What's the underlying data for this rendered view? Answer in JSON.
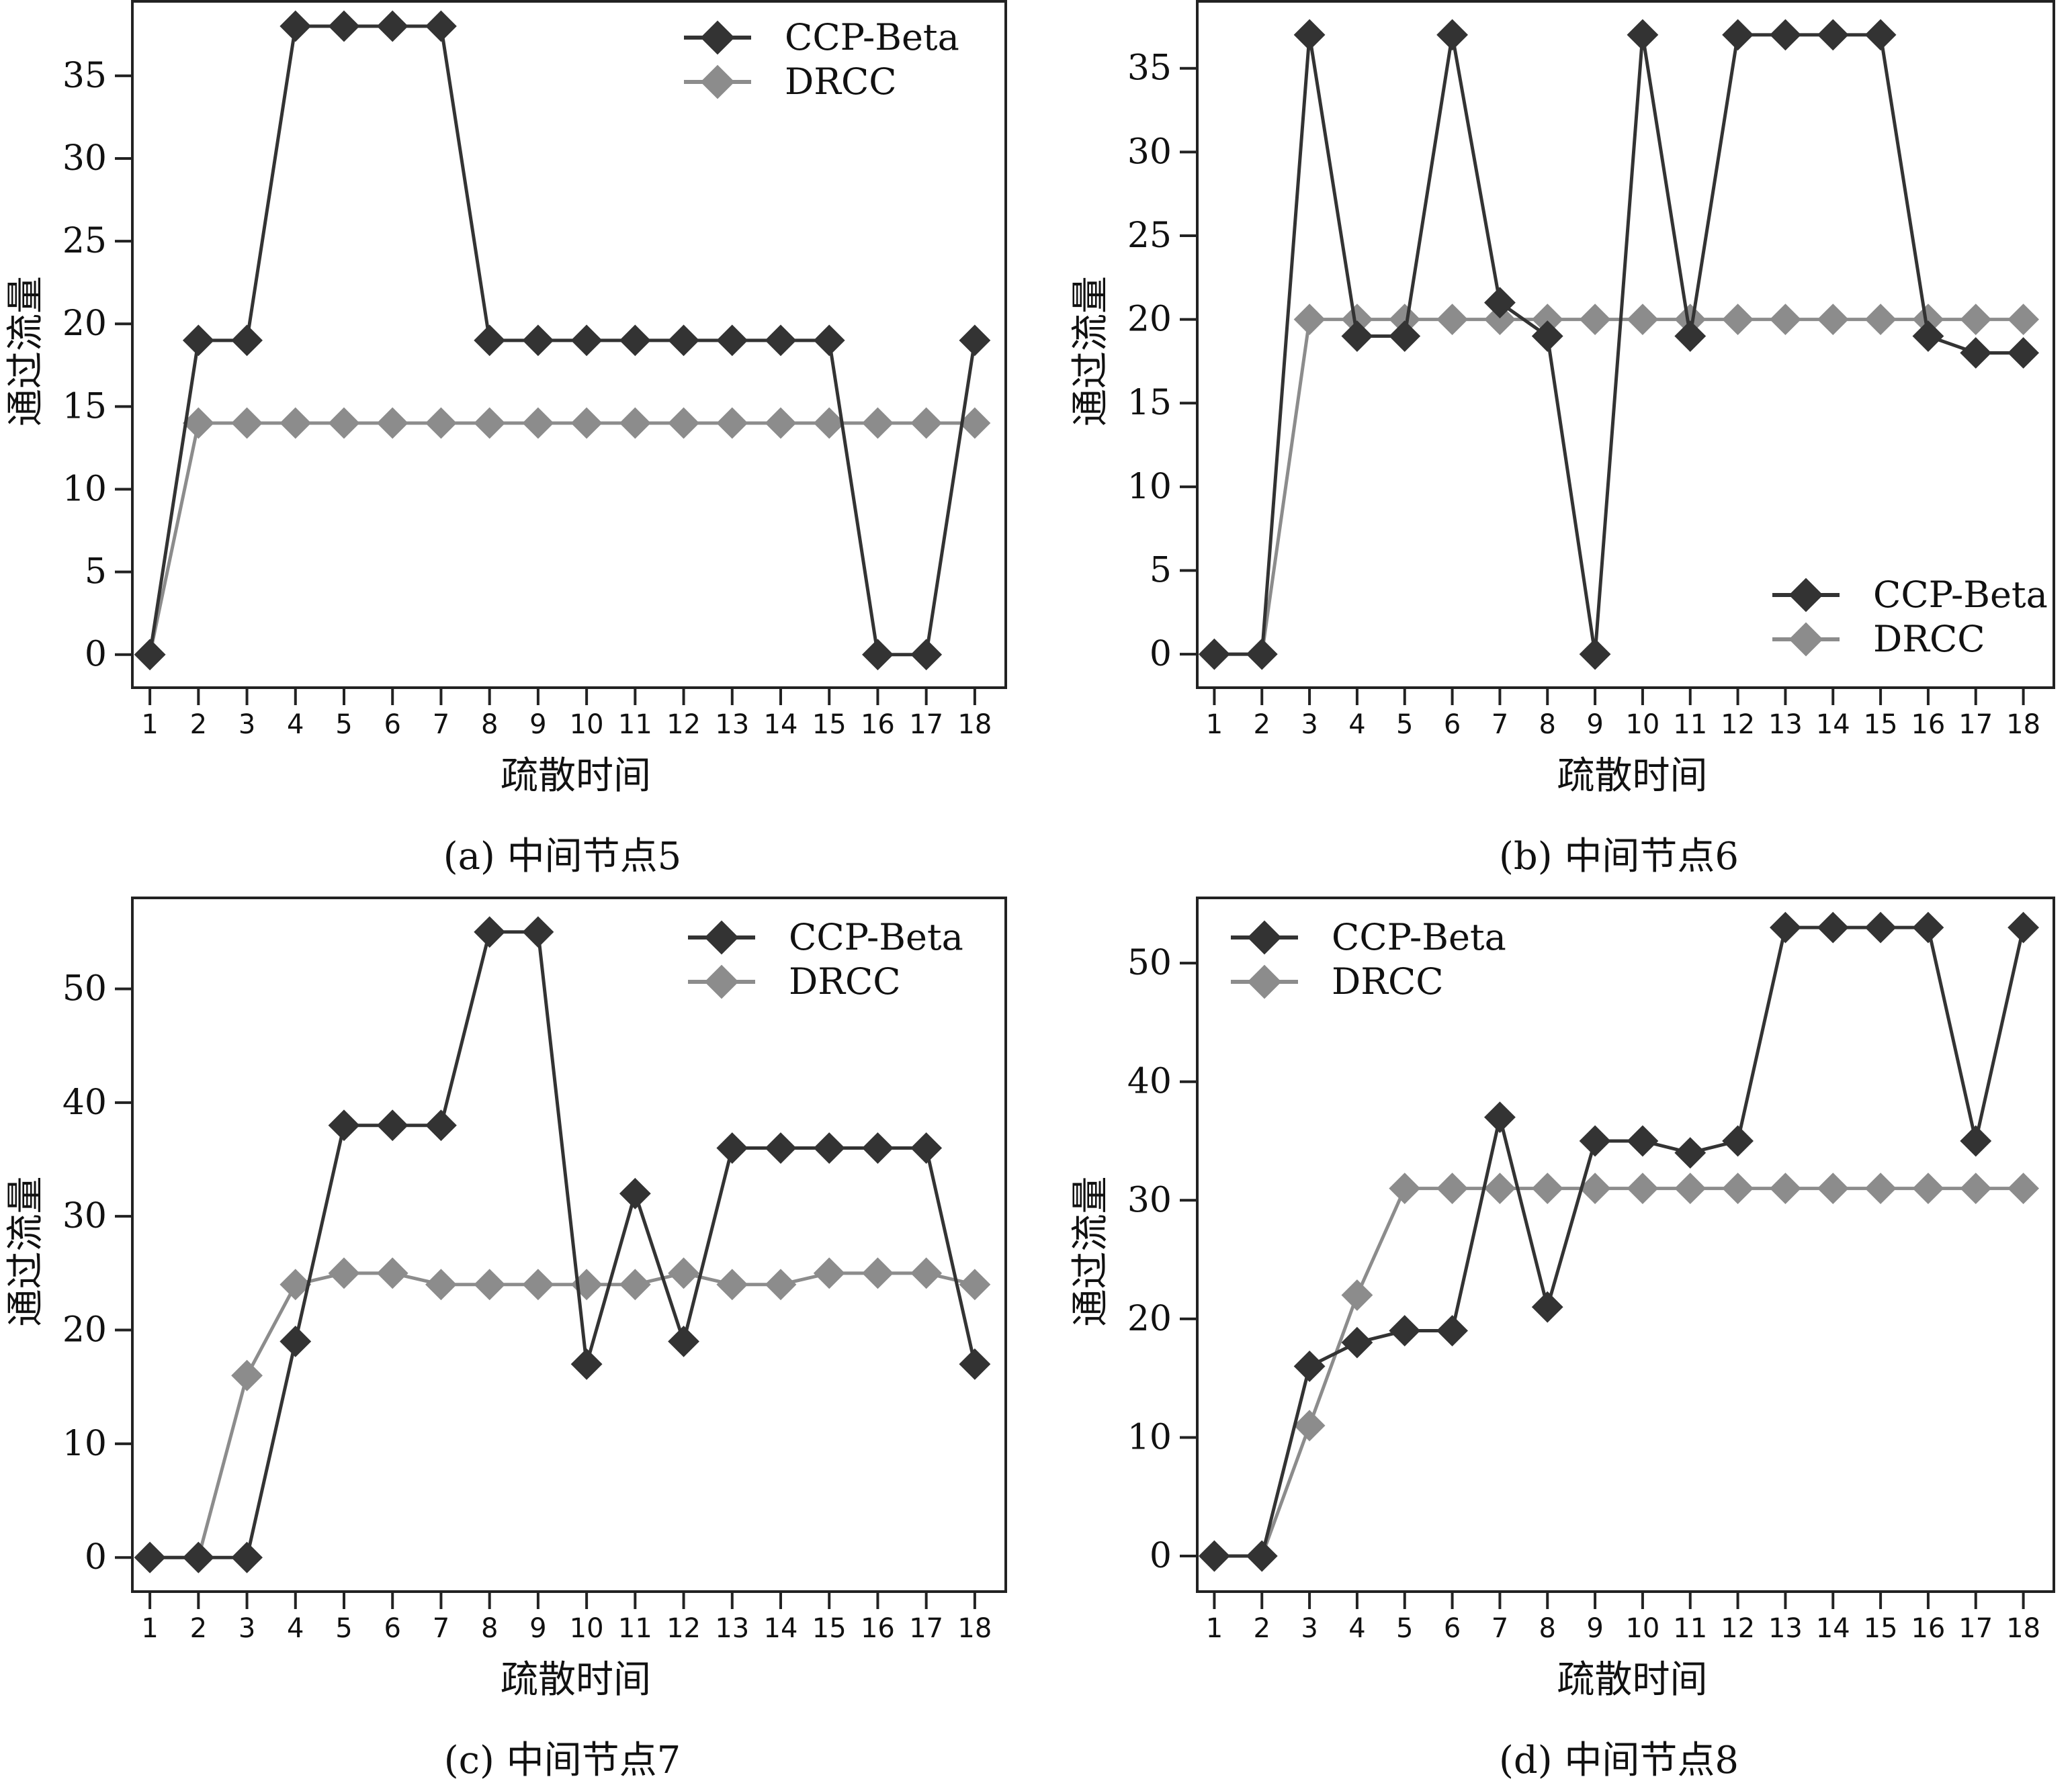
{
  "chart_data": [
    {
      "type": "line",
      "caption": "(a) 中间节点5",
      "xlabel": "疏散时间",
      "ylabel": "通过流量",
      "x": [
        1,
        2,
        3,
        4,
        5,
        6,
        7,
        8,
        9,
        10,
        11,
        12,
        13,
        14,
        15,
        16,
        17,
        18
      ],
      "yticks": [
        0,
        5,
        10,
        15,
        20,
        25,
        30,
        35
      ],
      "ylim": [
        -2,
        39.5
      ],
      "legend_position": "top-right",
      "grid": false,
      "series": [
        {
          "name": "CCP-Beta",
          "color": "#333333",
          "values": [
            0,
            19,
            19,
            38,
            38,
            38,
            38,
            19,
            19,
            19,
            19,
            19,
            19,
            19,
            19,
            0,
            0,
            19
          ]
        },
        {
          "name": "DRCC",
          "color": "#8c8c8c",
          "values": [
            0,
            14,
            14,
            14,
            14,
            14,
            14,
            14,
            14,
            14,
            14,
            14,
            14,
            14,
            14,
            14,
            14,
            14
          ]
        }
      ]
    },
    {
      "type": "line",
      "caption": "(b) 中间节点6",
      "xlabel": "疏散时间",
      "ylabel": "通过流量",
      "x": [
        1,
        2,
        3,
        4,
        5,
        6,
        7,
        8,
        9,
        10,
        11,
        12,
        13,
        14,
        15,
        16,
        17,
        18
      ],
      "yticks": [
        0,
        5,
        10,
        15,
        20,
        25,
        30,
        35
      ],
      "ylim": [
        -2,
        39
      ],
      "legend_position": "bottom-right",
      "grid": false,
      "series": [
        {
          "name": "CCP-Beta",
          "color": "#333333",
          "values": [
            0,
            0,
            37,
            19,
            19,
            37,
            21,
            19,
            0,
            37,
            19,
            37,
            37,
            37,
            37,
            19,
            18,
            18
          ]
        },
        {
          "name": "DRCC",
          "color": "#8c8c8c",
          "values": [
            0,
            0,
            20,
            20,
            20,
            20,
            20,
            20,
            20,
            20,
            20,
            20,
            20,
            20,
            20,
            20,
            20,
            20
          ]
        }
      ]
    },
    {
      "type": "line",
      "caption": "(c) 中间节点7",
      "xlabel": "疏散时间",
      "ylabel": "通过流量",
      "x": [
        1,
        2,
        3,
        4,
        5,
        6,
        7,
        8,
        9,
        10,
        11,
        12,
        13,
        14,
        15,
        16,
        17,
        18
      ],
      "yticks": [
        0,
        10,
        20,
        30,
        40,
        50
      ],
      "ylim": [
        -3,
        58
      ],
      "legend_position": "top-right",
      "grid": false,
      "series": [
        {
          "name": "CCP-Beta",
          "color": "#333333",
          "values": [
            0,
            0,
            0,
            19,
            38,
            38,
            38,
            55,
            55,
            17,
            32,
            19,
            36,
            36,
            36,
            36,
            36,
            17
          ]
        },
        {
          "name": "DRCC",
          "color": "#8c8c8c",
          "values": [
            0,
            0,
            16,
            24,
            25,
            25,
            24,
            24,
            24,
            24,
            24,
            25,
            24,
            24,
            25,
            25,
            25,
            24
          ]
        }
      ]
    },
    {
      "type": "line",
      "caption": "(d) 中间节点8",
      "xlabel": "疏散时间",
      "ylabel": "通过流量",
      "x": [
        1,
        2,
        3,
        4,
        5,
        6,
        7,
        8,
        9,
        10,
        11,
        12,
        13,
        14,
        15,
        16,
        17,
        18
      ],
      "yticks": [
        0,
        10,
        20,
        30,
        40,
        50
      ],
      "ylim": [
        -3,
        55.5
      ],
      "legend_position": "top-left",
      "grid": false,
      "series": [
        {
          "name": "CCP-Beta",
          "color": "#333333",
          "values": [
            0,
            0,
            16,
            18,
            19,
            19,
            37,
            21,
            35,
            35,
            34,
            35,
            53,
            53,
            53,
            53,
            35,
            53
          ]
        },
        {
          "name": "DRCC",
          "color": "#8c8c8c",
          "values": [
            0,
            0,
            11,
            22,
            31,
            31,
            31,
            31,
            31,
            31,
            31,
            31,
            31,
            31,
            31,
            31,
            31,
            31
          ]
        }
      ]
    }
  ]
}
